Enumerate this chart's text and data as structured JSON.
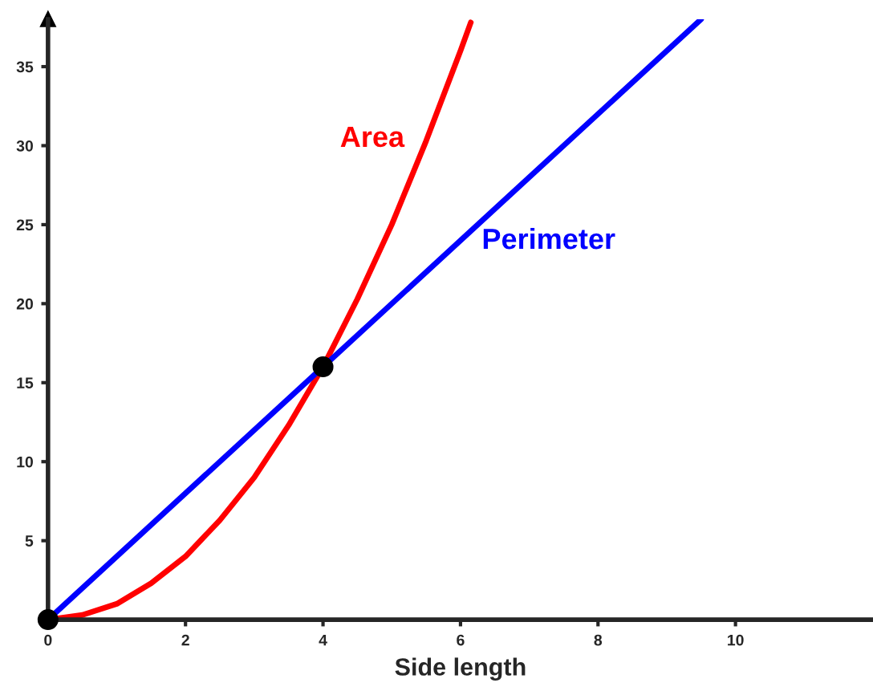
{
  "chart_data": {
    "type": "line",
    "xlabel": "Side length",
    "xlim": [
      0,
      12
    ],
    "ylim": [
      0,
      38
    ],
    "xticks": [
      0,
      2,
      4,
      6,
      8,
      10
    ],
    "yticks": [
      5,
      10,
      15,
      20,
      25,
      30,
      35
    ],
    "grid": false,
    "legend": false,
    "marker": "none",
    "line_style": "solid",
    "series": [
      {
        "name": "Area",
        "color": "#ff0000",
        "x": [
          0,
          0.5,
          1,
          1.5,
          2,
          2.5,
          3,
          3.5,
          4,
          4.5,
          5,
          5.5,
          6,
          6.15
        ],
        "values": [
          0,
          0.3,
          1,
          2.3,
          4,
          6.3,
          9,
          12.3,
          16,
          20.3,
          25,
          30.3,
          36,
          37.8
        ]
      },
      {
        "name": "Perimeter",
        "color": "#0000ff",
        "x": [
          0,
          9.5
        ],
        "values": [
          0,
          38
        ]
      },
      {
        "type": "scatter",
        "color": "#000000",
        "marker": "circle",
        "x": [
          0,
          4
        ],
        "values": [
          0,
          16
        ]
      }
    ]
  }
}
